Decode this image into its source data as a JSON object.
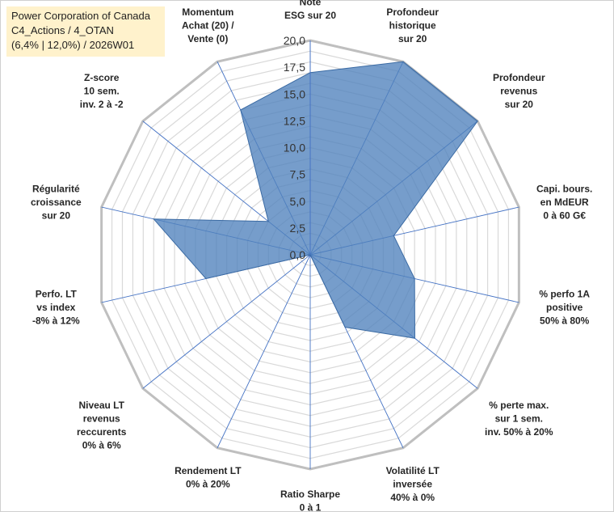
{
  "title_box": {
    "line1": "Power Corporation of Canada",
    "line2": "C4_Actions / 4_OTAN",
    "line3": "(6,4% | 12,0%) / 2026W01"
  },
  "colors": {
    "fill": "#4f81bd",
    "grid": "#d9d9d9",
    "axis": "#4472c4",
    "outer": "#bfbfbf"
  },
  "chart_data": {
    "type": "radar",
    "rmax": 20,
    "ticks": [
      "0,0",
      "2,5",
      "5,0",
      "7,5",
      "10,0",
      "12,5",
      "15,0",
      "17,5",
      "20,0"
    ],
    "tick_values": [
      0,
      2.5,
      5,
      7.5,
      10,
      12.5,
      15,
      17.5,
      20
    ],
    "axes": [
      {
        "label": [
          "Note",
          "ESG sur 20"
        ],
        "value": 17
      },
      {
        "label": [
          "Profondeur",
          "historique",
          "sur 20"
        ],
        "value": 20
      },
      {
        "label": [
          "Profondeur",
          "revenus",
          "sur 20"
        ],
        "value": 20
      },
      {
        "label": [
          "Capi. bours.",
          "en MdEUR",
          "0 à 60 G€"
        ],
        "value": 8
      },
      {
        "label": [
          "% perfo 1A",
          "positive",
          "50% à 80%"
        ],
        "value": 10
      },
      {
        "label": [
          "% perte max.",
          "sur 1 sem.",
          "inv. 50% à 20%"
        ],
        "value": 12.5
      },
      {
        "label": [
          "Volatilité LT",
          "inversée",
          "40% à 0%"
        ],
        "value": 7.5
      },
      {
        "label": [
          "Ratio Sharpe",
          "0 à 1"
        ],
        "value": 0
      },
      {
        "label": [
          "Rendement LT",
          "0% à 20%"
        ],
        "value": 0
      },
      {
        "label": [
          "Niveau LT",
          "revenus",
          "reccurents",
          "0% à 6%"
        ],
        "value": 0
      },
      {
        "label": [
          "Perfo. LT",
          "vs index",
          "-8% à 12%"
        ],
        "value": 10
      },
      {
        "label": [
          "Régularité",
          "croissance",
          "sur 20"
        ],
        "value": 15
      },
      {
        "label": [
          "Z-score",
          "10 sem.",
          "inv. 2 à -2"
        ],
        "value": 5
      },
      {
        "label": [
          "Momentum",
          "Achat (20) /",
          "Vente (0)"
        ],
        "value": 15
      }
    ]
  }
}
